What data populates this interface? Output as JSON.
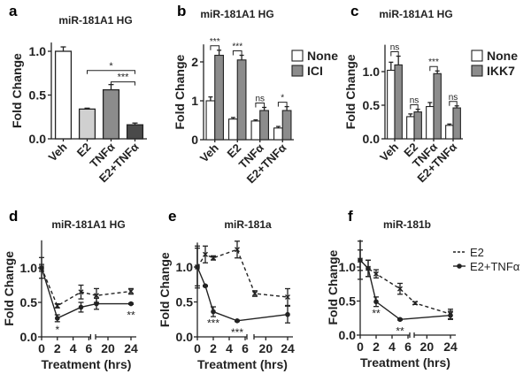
{
  "chart_data": [
    {
      "panel": "a",
      "type": "bar",
      "title": "miR-181A1 HG",
      "ylabel": "Fold Change",
      "ylim": [
        0,
        1.1
      ],
      "yticks": [
        "0.0",
        "0.5",
        "1.0"
      ],
      "ytick_values": [
        0,
        0.5,
        1.0
      ],
      "categories": [
        "Veh",
        "E2",
        "TNFα",
        "E2+TNFα"
      ],
      "series": [
        {
          "name": "",
          "values": [
            1.0,
            0.34,
            0.56,
            0.16
          ],
          "errors": [
            0.05,
            0.01,
            0.06,
            0.02
          ],
          "colors": [
            "#ffffff",
            "#d0d0d0",
            "#8c8c8c",
            "#4a4a4a"
          ]
        }
      ],
      "significance": [
        {
          "from": 1,
          "to": 3,
          "label": "*"
        },
        {
          "from": 2,
          "to": 3,
          "label": "***"
        }
      ]
    },
    {
      "panel": "b",
      "type": "bar",
      "title": "miR-181A1 HG",
      "ylabel": "Fold Change",
      "ylim": [
        0,
        2.45
      ],
      "yticks": [
        "0",
        "1",
        "2"
      ],
      "ytick_values": [
        0,
        1,
        2
      ],
      "categories": [
        "Veh",
        "E2",
        "TNFα",
        "E2+TNFα"
      ],
      "series": [
        {
          "name": "None",
          "color": "#ffffff",
          "values": [
            1.0,
            0.53,
            0.48,
            0.3
          ],
          "errors": [
            0.1,
            0.04,
            0.03,
            0.04
          ]
        },
        {
          "name": "ICI",
          "color": "#8c8c8c",
          "values": [
            2.17,
            2.05,
            0.75,
            0.75
          ],
          "errors": [
            0.13,
            0.12,
            0.08,
            0.1
          ]
        }
      ],
      "significance": [
        "***",
        "***",
        "ns",
        "*"
      ],
      "legend": "top-right"
    },
    {
      "panel": "c",
      "type": "bar",
      "title": "miR-181A1 HG",
      "ylabel": "Fold Change",
      "ylim": [
        0,
        1.4
      ],
      "yticks": [
        "0.0",
        "0.5",
        "1.0"
      ],
      "ytick_values": [
        0,
        0.5,
        1.0
      ],
      "categories": [
        "Veh",
        "E2",
        "TNFα",
        "E2+TNFα"
      ],
      "series": [
        {
          "name": "None",
          "color": "#ffffff",
          "values": [
            1.02,
            0.33,
            0.48,
            0.2
          ],
          "errors": [
            0.12,
            0.04,
            0.06,
            0.02
          ]
        },
        {
          "name": "IKK7",
          "color": "#8c8c8c",
          "values": [
            1.1,
            0.4,
            0.97,
            0.46
          ],
          "errors": [
            0.13,
            0.04,
            0.04,
            0.03
          ]
        }
      ],
      "significance": [
        "ns",
        "ns",
        "***",
        "ns"
      ],
      "legend": "top-right"
    },
    {
      "panel": "d",
      "type": "line",
      "title": "miR-181A1 HG",
      "ylabel": "Fold Change",
      "xlabel": "Treatment (hrs)",
      "ylim": [
        0,
        1.4
      ],
      "yticks": [
        "0.0",
        "0.5",
        "1.0"
      ],
      "ytick_values": [
        0,
        0.5,
        1.0
      ],
      "xticks": [
        "0",
        "2",
        "4",
        "6",
        "20",
        "24"
      ],
      "xtick_values": [
        0,
        2,
        4,
        6,
        20,
        24
      ],
      "series": [
        {
          "name": "E2",
          "style": "dashed",
          "x": [
            0,
            2,
            5,
            18,
            24
          ],
          "y": [
            1.0,
            0.45,
            0.65,
            0.6,
            0.66
          ],
          "errors": [
            0.15,
            0.03,
            0.1,
            0.1,
            0.04
          ]
        },
        {
          "name": "E2+TNFα",
          "style": "solid",
          "x": [
            0,
            2,
            5,
            18,
            24
          ],
          "y": [
            1.0,
            0.27,
            0.43,
            0.48,
            0.48
          ],
          "errors": [
            0.05,
            0.05,
            0.07,
            0.08,
            0.01
          ]
        }
      ],
      "annotations": [
        {
          "x": 2,
          "y": 0.27,
          "label": "*"
        },
        {
          "x": 24,
          "y": 0.48,
          "label": "**"
        }
      ]
    },
    {
      "panel": "e",
      "type": "line",
      "title": "miR-181a",
      "ylabel": "Fold Change",
      "xlabel": "Treatment (hrs)",
      "ylim": [
        0,
        1.35
      ],
      "yticks": [
        "0.0",
        "0.5",
        "1.0"
      ],
      "ytick_values": [
        0,
        0.5,
        1.0
      ],
      "xticks": [
        "0",
        "2",
        "4",
        "6",
        "20",
        "24"
      ],
      "xtick_values": [
        0,
        2,
        4,
        6,
        20,
        24
      ],
      "series": [
        {
          "name": "E2",
          "style": "dashed",
          "x": [
            0,
            1,
            2,
            5,
            18,
            24
          ],
          "y": [
            1.0,
            1.18,
            1.13,
            1.25,
            0.62,
            0.57
          ],
          "errors": [
            0.3,
            0.12,
            0.03,
            0.12,
            0.04,
            0.12
          ]
        },
        {
          "name": "E2+TNFα",
          "style": "solid",
          "x": [
            0,
            1,
            2,
            5,
            24
          ],
          "y": [
            1.0,
            0.73,
            0.36,
            0.23,
            0.32
          ],
          "errors": [
            0.27,
            0.01,
            0.07,
            0.01,
            0.12
          ]
        }
      ],
      "annotations": [
        {
          "x": 2,
          "y": 0.36,
          "label": "***"
        },
        {
          "x": 5,
          "y": 0.23,
          "label": "***"
        }
      ]
    },
    {
      "panel": "f",
      "type": "line",
      "title": "miR-181b",
      "ylabel": "Fold Change",
      "xlabel": "Treatment (hrs)",
      "ylim": [
        0,
        1.4
      ],
      "yticks": [
        "0.0",
        "0.5",
        "1.0"
      ],
      "ytick_values": [
        0,
        0.5,
        1.0
      ],
      "xticks": [
        "0",
        "2",
        "4",
        "6",
        "20",
        "24"
      ],
      "xtick_values": [
        0,
        2,
        4,
        6,
        20,
        24
      ],
      "series": [
        {
          "name": "E2",
          "style": "dashed",
          "x": [
            0,
            1,
            2,
            5,
            18,
            24
          ],
          "y": [
            1.1,
            0.98,
            0.9,
            0.68,
            0.47,
            0.31
          ],
          "errors": [
            0.28,
            0.12,
            0.06,
            0.08,
            0.02,
            0.07
          ]
        },
        {
          "name": "E2+TNFα",
          "style": "solid",
          "x": [
            0,
            1,
            2,
            5,
            24
          ],
          "y": [
            1.1,
            0.98,
            0.49,
            0.23,
            0.29
          ],
          "errors": [
            0.15,
            0.12,
            0.07,
            0.01,
            0.06
          ]
        }
      ],
      "annotations": [
        {
          "x": 2,
          "y": 0.49,
          "label": "**"
        },
        {
          "x": 5,
          "y": 0.23,
          "label": "**"
        }
      ],
      "legend": "right"
    }
  ]
}
